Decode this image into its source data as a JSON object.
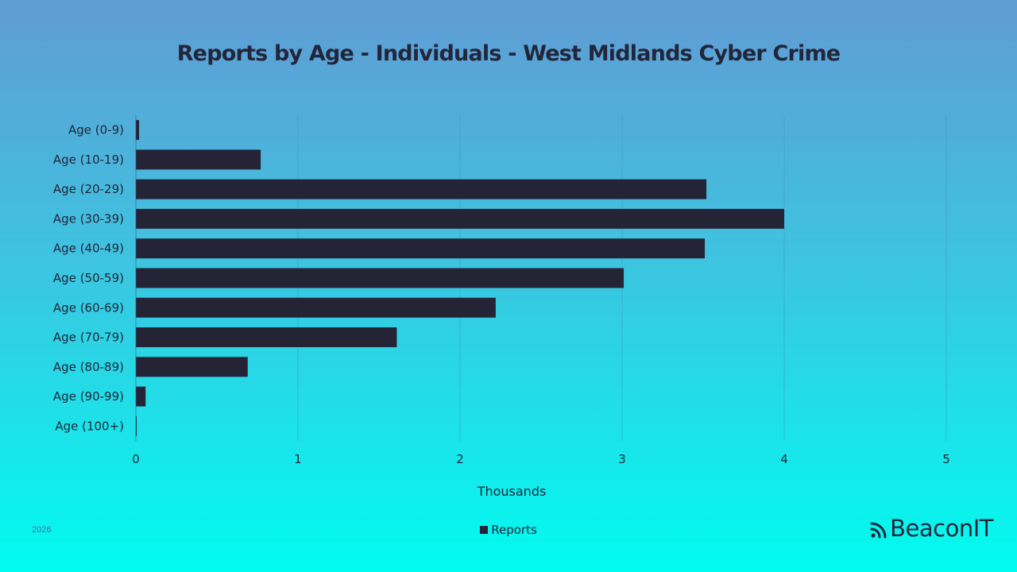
{
  "chart_data": {
    "type": "bar",
    "orientation": "horizontal",
    "title": "Reports by Age - Individuals - West Midlands Cyber Crime",
    "xlabel": "Thousands",
    "ylabel": "",
    "categories": [
      "Age (0-9)",
      "Age (10-19)",
      "Age (20-29)",
      "Age (30-39)",
      "Age (40-49)",
      "Age (50-59)",
      "Age (60-69)",
      "Age (70-79)",
      "Age (80-89)",
      "Age (90-99)",
      "Age (100+)"
    ],
    "series": [
      {
        "name": "Reports",
        "values": [
          0.02,
          0.77,
          3.52,
          4.0,
          3.51,
          3.01,
          2.22,
          1.61,
          0.69,
          0.06,
          0.005
        ]
      }
    ],
    "xlim": [
      0,
      5
    ],
    "xticks": [
      "0",
      "1",
      "2",
      "3",
      "4",
      "5"
    ],
    "grid": true,
    "legend_position": "bottom-center",
    "bar_color": "#252437"
  },
  "footer": {
    "year": "2026",
    "brand": "BeaconIT"
  }
}
